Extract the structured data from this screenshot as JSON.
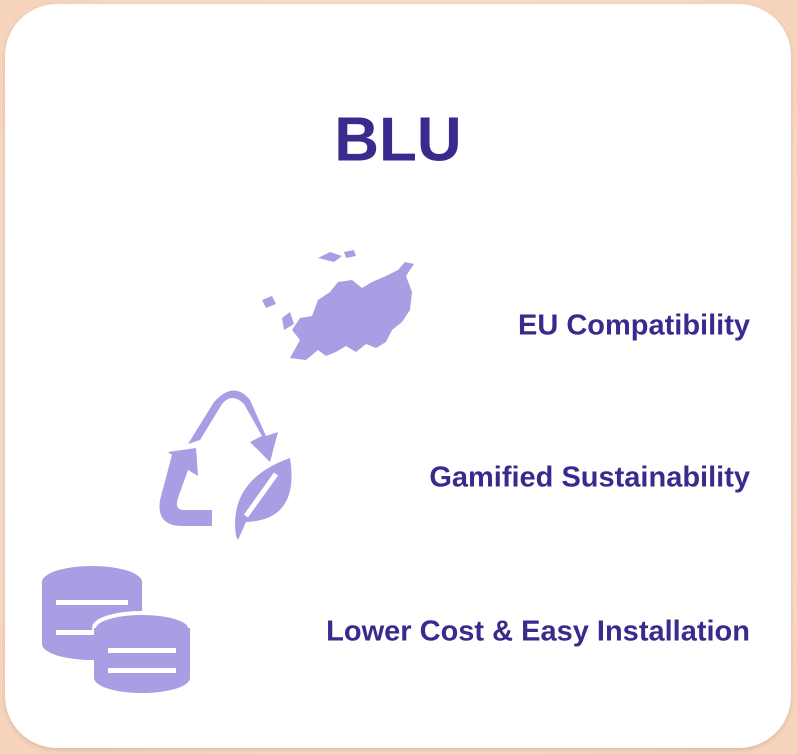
{
  "title": "BLU",
  "features": [
    {
      "label": "EU Compatibility"
    },
    {
      "label": "Gamified Sustainability"
    },
    {
      "label": "Lower Cost & Easy Installation"
    }
  ]
}
